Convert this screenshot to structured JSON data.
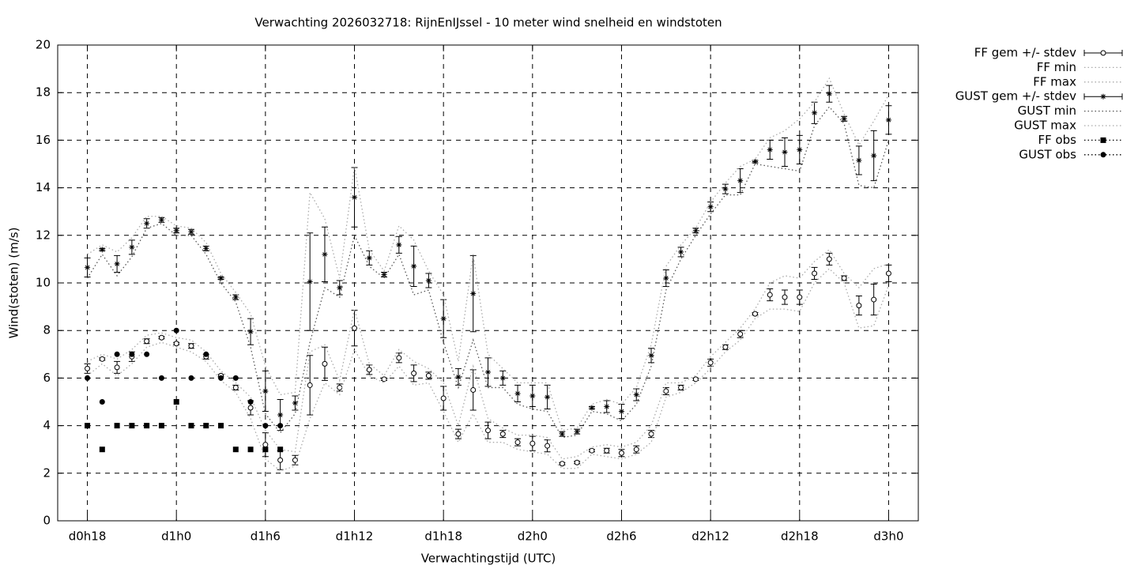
{
  "chart_data": {
    "type": "line",
    "title": "Verwachting 2026032718: RijnEnIJssel - 10 meter wind snelheid en windstoten",
    "xlabel": "Verwachtingstijd (UTC)",
    "ylabel": "Wind(stoten) (m/s)",
    "xlim": [
      16,
      74
    ],
    "xticks": [
      {
        "value": 18,
        "label": "d0h18"
      },
      {
        "value": 24,
        "label": "d1h0"
      },
      {
        "value": 30,
        "label": "d1h6"
      },
      {
        "value": 36,
        "label": "d1h12"
      },
      {
        "value": 42,
        "label": "d1h18"
      },
      {
        "value": 48,
        "label": "d2h0"
      },
      {
        "value": 54,
        "label": "d2h6"
      },
      {
        "value": 60,
        "label": "d2h12"
      },
      {
        "value": 66,
        "label": "d2h18"
      },
      {
        "value": 72,
        "label": "d3h0"
      }
    ],
    "ylim": [
      0,
      20
    ],
    "yticks": [
      0,
      2,
      4,
      6,
      8,
      10,
      12,
      14,
      16,
      18,
      20
    ],
    "grid": true,
    "legend": "outside-right",
    "x": [
      18,
      19,
      20,
      21,
      22,
      23,
      24,
      25,
      26,
      27,
      28,
      29,
      30,
      31,
      32,
      33,
      34,
      35,
      36,
      37,
      38,
      39,
      40,
      41,
      42,
      43,
      44,
      45,
      46,
      47,
      48,
      49,
      50,
      51,
      52,
      53,
      54,
      55,
      56,
      57,
      58,
      59,
      60,
      61,
      62,
      63,
      64,
      65,
      66,
      67,
      68,
      69,
      70,
      71,
      72
    ],
    "series": [
      {
        "name": "FF gem +/- stdev",
        "color": "#000000",
        "marker": "circle",
        "line": "none",
        "values": [
          6.4,
          6.8,
          6.45,
          6.9,
          7.55,
          7.7,
          7.45,
          7.35,
          6.9,
          6.1,
          5.6,
          4.75,
          3.2,
          2.55,
          2.55,
          5.7,
          6.6,
          5.6,
          8.1,
          6.35,
          5.95,
          6.85,
          6.2,
          6.1,
          5.15,
          3.65,
          5.5,
          3.8,
          3.65,
          3.3,
          3.25,
          3.15,
          2.4,
          2.45,
          2.95,
          2.95,
          2.85,
          3.0,
          3.65,
          5.45,
          5.6,
          5.95,
          6.65,
          7.3,
          7.85,
          8.7,
          9.5,
          9.4,
          9.4,
          10.4,
          11.0,
          10.2,
          9.05,
          9.3,
          10.4
        ],
        "errors": [
          0.2,
          0.05,
          0.25,
          0.2,
          0.1,
          0.05,
          0.05,
          0.1,
          0.1,
          0.05,
          0.1,
          0.3,
          0.5,
          0.4,
          0.2,
          1.25,
          0.7,
          0.15,
          0.75,
          0.2,
          0.05,
          0.2,
          0.35,
          0.15,
          0.5,
          0.2,
          0.85,
          0.35,
          0.15,
          0.15,
          0.3,
          0.25,
          0.05,
          0.05,
          0.05,
          0.1,
          0.15,
          0.15,
          0.15,
          0.15,
          0.1,
          0.05,
          0.15,
          0.1,
          0.15,
          0.05,
          0.25,
          0.3,
          0.3,
          0.25,
          0.25,
          0.1,
          0.4,
          0.65,
          0.35
        ]
      },
      {
        "name": "FF min",
        "color": "#aaaaaa",
        "marker": "none",
        "line": "dotted",
        "values": [
          6.1,
          6.6,
          6.1,
          6.6,
          7.3,
          7.5,
          7.3,
          7.1,
          6.7,
          5.9,
          5.4,
          4.3,
          2.6,
          2.1,
          2.3,
          4.3,
          5.8,
          5.3,
          7.2,
          6.1,
          5.8,
          6.5,
          5.7,
          5.8,
          4.6,
          3.3,
          4.5,
          3.3,
          3.3,
          3.0,
          2.9,
          2.8,
          2.2,
          2.2,
          2.8,
          2.7,
          2.6,
          2.8,
          3.3,
          5.2,
          5.4,
          5.8,
          6.4,
          7.1,
          7.6,
          8.5,
          8.9,
          8.9,
          8.8,
          10.0,
          10.6,
          10.0,
          8.1,
          8.2,
          9.9
        ]
      },
      {
        "name": "FF max",
        "color": "#aaaaaa",
        "marker": "none",
        "line": "dotted",
        "values": [
          6.7,
          7.0,
          6.8,
          7.2,
          7.8,
          7.9,
          7.7,
          7.6,
          7.1,
          6.3,
          5.8,
          5.2,
          3.8,
          3.0,
          2.9,
          7.1,
          7.4,
          5.9,
          8.9,
          6.6,
          6.1,
          7.2,
          6.7,
          6.4,
          5.8,
          4.0,
          6.5,
          4.3,
          3.9,
          3.6,
          3.6,
          3.5,
          2.6,
          2.7,
          3.1,
          3.2,
          3.1,
          3.3,
          4.0,
          5.8,
          5.8,
          6.1,
          6.9,
          7.5,
          8.1,
          8.9,
          10.0,
          10.3,
          10.2,
          10.9,
          11.4,
          10.4,
          9.8,
          10.6,
          10.8
        ]
      },
      {
        "name": "GUST gem +/- stdev",
        "color": "#000000",
        "marker": "star",
        "line": "none",
        "values": [
          10.65,
          11.4,
          10.8,
          11.5,
          12.5,
          12.65,
          12.2,
          12.15,
          11.45,
          10.2,
          9.4,
          7.95,
          5.45,
          4.45,
          4.95,
          10.05,
          11.2,
          9.8,
          13.6,
          11.05,
          10.35,
          11.6,
          10.7,
          10.1,
          8.5,
          6.05,
          9.55,
          6.25,
          6.0,
          5.35,
          5.25,
          5.2,
          3.65,
          3.75,
          4.75,
          4.8,
          4.6,
          5.3,
          6.95,
          10.2,
          11.3,
          12.2,
          13.2,
          13.95,
          14.3,
          15.1,
          15.6,
          15.5,
          15.6,
          17.15,
          17.95,
          16.9,
          15.15,
          15.35,
          16.85
        ],
        "errors": [
          0.4,
          0.05,
          0.35,
          0.3,
          0.2,
          0.1,
          0.1,
          0.1,
          0.1,
          0.05,
          0.1,
          0.55,
          0.85,
          0.65,
          0.3,
          2.05,
          1.15,
          0.3,
          1.25,
          0.3,
          0.1,
          0.35,
          0.85,
          0.3,
          0.8,
          0.35,
          1.6,
          0.6,
          0.3,
          0.35,
          0.45,
          0.5,
          0.1,
          0.1,
          0.05,
          0.25,
          0.3,
          0.25,
          0.3,
          0.35,
          0.2,
          0.1,
          0.2,
          0.2,
          0.5,
          0.05,
          0.4,
          0.6,
          0.6,
          0.45,
          0.35,
          0.1,
          0.6,
          1.05,
          0.6
        ]
      },
      {
        "name": "GUST min",
        "color": "#555555",
        "marker": "none",
        "line": "dotted",
        "values": [
          10.2,
          11.2,
          10.3,
          11.1,
          12.3,
          12.5,
          12.0,
          12.0,
          11.2,
          10.0,
          9.2,
          7.3,
          4.5,
          3.7,
          4.5,
          7.5,
          9.8,
          9.4,
          12.0,
          10.7,
          10.2,
          11.2,
          9.5,
          9.7,
          7.5,
          5.6,
          7.6,
          5.6,
          5.6,
          4.9,
          4.7,
          4.6,
          3.5,
          3.6,
          4.6,
          4.5,
          4.2,
          4.9,
          6.5,
          9.7,
          11.0,
          12.0,
          12.9,
          13.7,
          13.7,
          15.0,
          14.9,
          14.8,
          14.7,
          16.6,
          17.4,
          16.7,
          14.1,
          14.0,
          16.0
        ]
      },
      {
        "name": "GUST max",
        "color": "#aaaaaa",
        "marker": "none",
        "line": "dotted",
        "values": [
          11.2,
          11.6,
          11.3,
          11.9,
          12.8,
          12.8,
          12.4,
          12.3,
          11.7,
          10.4,
          9.6,
          8.7,
          6.5,
          5.3,
          5.4,
          13.8,
          12.7,
          10.2,
          14.9,
          11.4,
          10.5,
          12.4,
          11.8,
          10.5,
          9.5,
          6.7,
          11.2,
          7.0,
          6.4,
          5.8,
          5.8,
          5.8,
          3.8,
          3.9,
          4.9,
          5.1,
          4.9,
          5.6,
          7.4,
          10.7,
          11.6,
          12.3,
          13.4,
          14.2,
          14.9,
          15.2,
          16.1,
          16.4,
          16.9,
          17.6,
          18.6,
          17.1,
          15.8,
          16.8,
          17.9
        ]
      },
      {
        "name": "FF obs",
        "color": "#000000",
        "marker": "square",
        "line": "dotted",
        "x": [
          18,
          19,
          20,
          21,
          22,
          23,
          24,
          25,
          26,
          27,
          28,
          29,
          30,
          31
        ],
        "values": [
          4,
          3,
          4,
          4,
          4,
          4,
          5,
          4,
          4,
          4,
          3,
          3,
          3,
          3
        ]
      },
      {
        "name": "GUST obs",
        "color": "#000000",
        "marker": "dot",
        "line": "dotted",
        "x": [
          18,
          19,
          20,
          21,
          22,
          23,
          24,
          25,
          26,
          27,
          28,
          29,
          30,
          31
        ],
        "values": [
          6,
          5,
          7,
          7,
          7,
          6,
          8,
          6,
          7,
          6,
          6,
          5,
          4,
          4
        ]
      }
    ]
  }
}
